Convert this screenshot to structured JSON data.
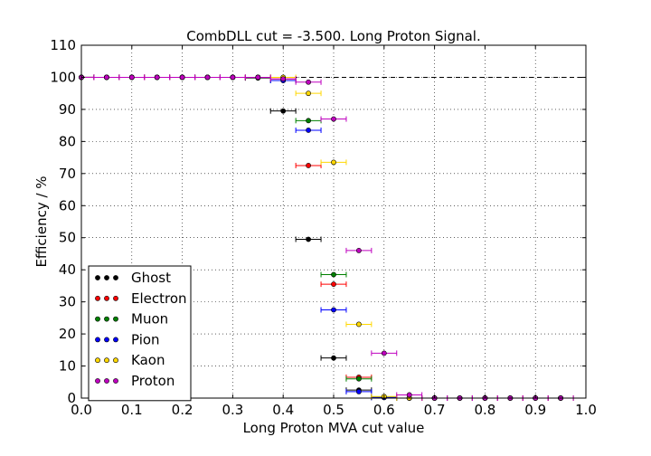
{
  "chart_data": {
    "type": "scatter",
    "title": "CombDLL cut = -3.500. Long Proton Signal.",
    "xlabel": "Long Proton MVA cut value",
    "ylabel": "Efficiency / %",
    "xlim": [
      0.0,
      1.0
    ],
    "ylim": [
      0,
      110
    ],
    "xticks": [
      "0.0",
      "0.1",
      "0.2",
      "0.3",
      "0.4",
      "0.5",
      "0.6",
      "0.7",
      "0.8",
      "0.9",
      "1.0"
    ],
    "yticks": [
      "0",
      "10",
      "20",
      "30",
      "40",
      "50",
      "60",
      "70",
      "80",
      "90",
      "100",
      "110"
    ],
    "grid": true,
    "reference_line": 100,
    "legend_position": "lower-left",
    "series": [
      {
        "name": "Ghost",
        "color": "#000000",
        "points": [
          [
            0.0,
            100
          ],
          [
            0.05,
            100
          ],
          [
            0.1,
            100
          ],
          [
            0.15,
            100
          ],
          [
            0.2,
            100
          ],
          [
            0.25,
            100
          ],
          [
            0.3,
            100
          ],
          [
            0.35,
            99.8
          ],
          [
            0.4,
            89.5
          ],
          [
            0.45,
            49.5
          ],
          [
            0.5,
            12.5
          ],
          [
            0.55,
            2.5
          ],
          [
            0.6,
            0.2
          ],
          [
            0.65,
            0
          ],
          [
            0.7,
            0
          ],
          [
            0.75,
            0
          ],
          [
            0.8,
            0
          ],
          [
            0.85,
            0
          ],
          [
            0.9,
            0
          ],
          [
            0.95,
            0
          ]
        ]
      },
      {
        "name": "Electron",
        "color": "#ff0000",
        "points": [
          [
            0.0,
            100
          ],
          [
            0.05,
            100
          ],
          [
            0.1,
            100
          ],
          [
            0.15,
            100
          ],
          [
            0.2,
            100
          ],
          [
            0.25,
            100
          ],
          [
            0.3,
            100
          ],
          [
            0.35,
            100
          ],
          [
            0.4,
            99.5
          ],
          [
            0.45,
            72.5
          ],
          [
            0.5,
            35.5
          ],
          [
            0.55,
            6.5
          ],
          [
            0.6,
            0.3
          ],
          [
            0.65,
            0
          ],
          [
            0.7,
            0
          ],
          [
            0.75,
            0
          ],
          [
            0.8,
            0
          ],
          [
            0.85,
            0
          ],
          [
            0.9,
            0
          ],
          [
            0.95,
            0
          ]
        ]
      },
      {
        "name": "Muon",
        "color": "#008000",
        "points": [
          [
            0.0,
            100
          ],
          [
            0.05,
            100
          ],
          [
            0.1,
            100
          ],
          [
            0.15,
            100
          ],
          [
            0.2,
            100
          ],
          [
            0.25,
            100
          ],
          [
            0.3,
            100
          ],
          [
            0.35,
            100
          ],
          [
            0.4,
            99
          ],
          [
            0.45,
            86.5
          ],
          [
            0.5,
            38.5
          ],
          [
            0.55,
            6
          ],
          [
            0.6,
            0.3
          ],
          [
            0.65,
            0
          ],
          [
            0.7,
            0
          ],
          [
            0.75,
            0
          ],
          [
            0.8,
            0
          ],
          [
            0.85,
            0
          ],
          [
            0.9,
            0
          ],
          [
            0.95,
            0
          ]
        ]
      },
      {
        "name": "Pion",
        "color": "#0000ff",
        "points": [
          [
            0.0,
            100
          ],
          [
            0.05,
            100
          ],
          [
            0.1,
            100
          ],
          [
            0.15,
            100
          ],
          [
            0.2,
            100
          ],
          [
            0.25,
            100
          ],
          [
            0.3,
            100
          ],
          [
            0.35,
            100
          ],
          [
            0.4,
            99
          ],
          [
            0.45,
            83.5
          ],
          [
            0.5,
            27.5
          ],
          [
            0.55,
            2
          ],
          [
            0.6,
            0.2
          ],
          [
            0.65,
            0
          ],
          [
            0.7,
            0
          ],
          [
            0.75,
            0
          ],
          [
            0.8,
            0
          ],
          [
            0.85,
            0
          ],
          [
            0.9,
            0
          ],
          [
            0.95,
            0
          ]
        ]
      },
      {
        "name": "Kaon",
        "color": "#ffd700",
        "points": [
          [
            0.0,
            100
          ],
          [
            0.05,
            100
          ],
          [
            0.1,
            100
          ],
          [
            0.15,
            100
          ],
          [
            0.2,
            100
          ],
          [
            0.25,
            100
          ],
          [
            0.3,
            100
          ],
          [
            0.35,
            100
          ],
          [
            0.4,
            100
          ],
          [
            0.45,
            95
          ],
          [
            0.5,
            73.5
          ],
          [
            0.55,
            23
          ],
          [
            0.6,
            0.5
          ],
          [
            0.65,
            0
          ],
          [
            0.7,
            0
          ],
          [
            0.75,
            0
          ],
          [
            0.8,
            0
          ],
          [
            0.85,
            0
          ],
          [
            0.9,
            0
          ],
          [
            0.95,
            0
          ]
        ]
      },
      {
        "name": "Proton",
        "color": "#bf00bf",
        "points": [
          [
            0.0,
            100
          ],
          [
            0.05,
            100
          ],
          [
            0.1,
            100
          ],
          [
            0.15,
            100
          ],
          [
            0.2,
            100
          ],
          [
            0.25,
            100
          ],
          [
            0.3,
            100
          ],
          [
            0.35,
            100
          ],
          [
            0.4,
            99.5
          ],
          [
            0.45,
            98.5
          ],
          [
            0.5,
            87
          ],
          [
            0.55,
            46
          ],
          [
            0.6,
            14
          ],
          [
            0.65,
            1
          ],
          [
            0.7,
            0
          ],
          [
            0.75,
            0
          ],
          [
            0.8,
            0
          ],
          [
            0.85,
            0
          ],
          [
            0.9,
            0
          ],
          [
            0.95,
            0
          ]
        ]
      }
    ]
  }
}
